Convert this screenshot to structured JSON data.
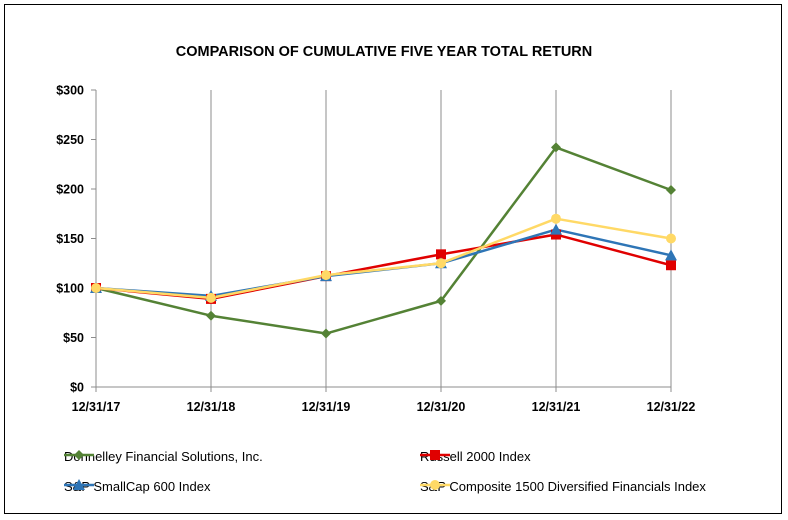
{
  "chart_data": {
    "type": "line",
    "title": "COMPARISON OF CUMULATIVE FIVE YEAR TOTAL RETURN",
    "xlabel": "",
    "ylabel": "",
    "categories": [
      "12/31/17",
      "12/31/18",
      "12/31/19",
      "12/31/20",
      "12/31/21",
      "12/31/22"
    ],
    "ylim": [
      0,
      300
    ],
    "yticks": [
      0,
      50,
      100,
      150,
      200,
      250,
      300
    ],
    "ytick_labels": [
      "$0",
      "$50",
      "$100",
      "$150",
      "$200",
      "$250",
      "$300"
    ],
    "grid": "vertical",
    "legend_position": "bottom",
    "series": [
      {
        "name": "Donnelley Financial Solutions, Inc.",
        "color": "#548235",
        "marker": "diamond",
        "values": [
          100,
          72,
          54,
          87,
          242,
          199
        ]
      },
      {
        "name": "Russell 2000 Index",
        "color": "#e00000",
        "marker": "square",
        "values": [
          100,
          89,
          112,
          134,
          154,
          123
        ]
      },
      {
        "name": "S&P SmallCap 600 Index",
        "color": "#2e75b6",
        "marker": "triangle",
        "values": [
          100,
          92,
          112,
          125,
          159,
          133
        ]
      },
      {
        "name": "S&P Composite 1500 Diversified Financials Index",
        "color": "#ffd966",
        "marker": "circle",
        "values": [
          100,
          90,
          113,
          125,
          170,
          150
        ]
      }
    ]
  }
}
